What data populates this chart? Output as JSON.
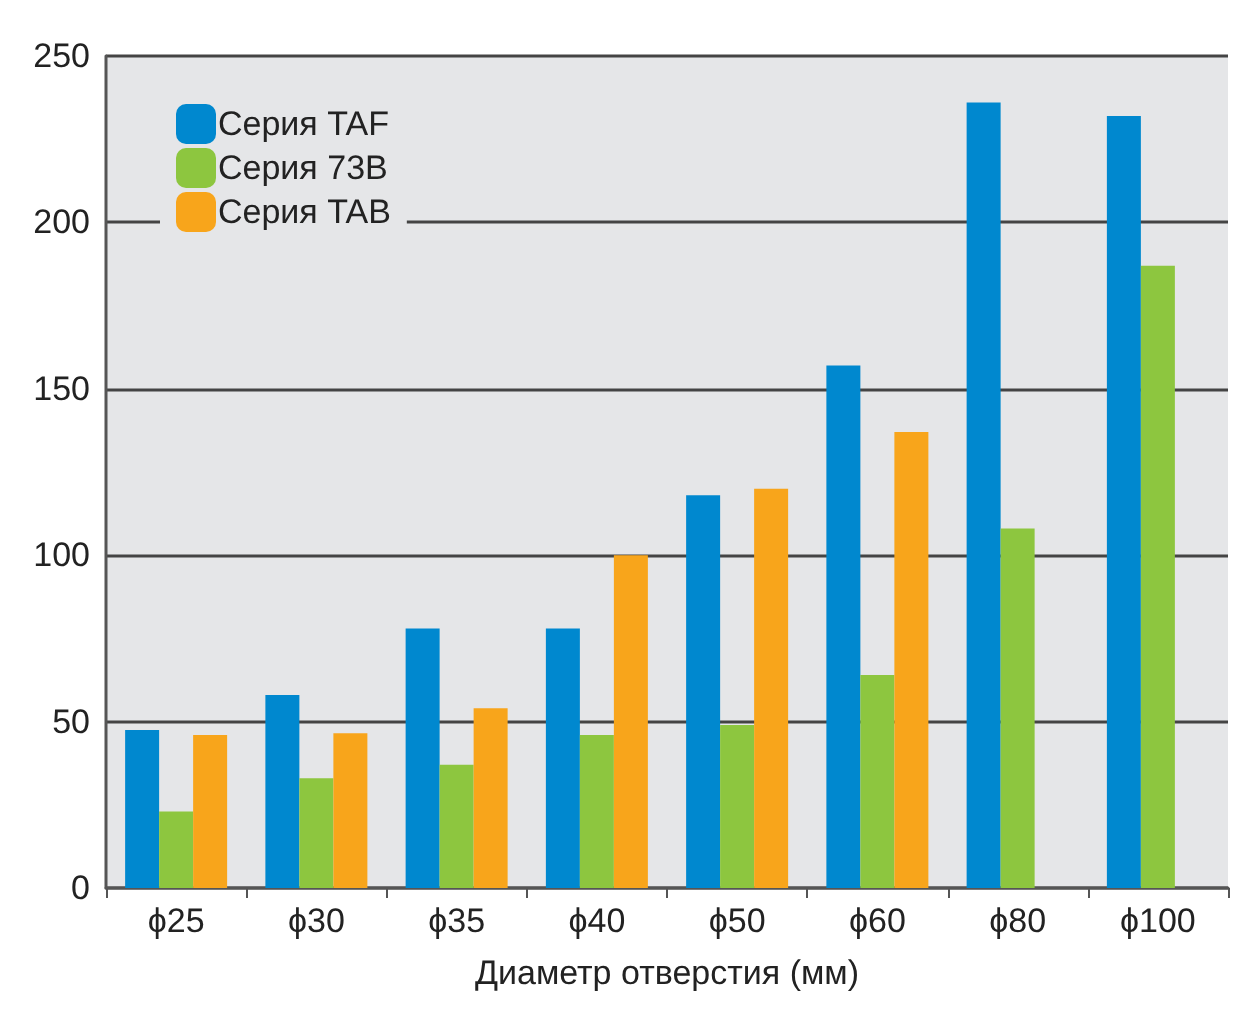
{
  "chart_data": {
    "type": "bar",
    "xlabel": "Диаметр отверстия (мм)",
    "categories": [
      "ϕ25",
      "ϕ30",
      "ϕ35",
      "ϕ40",
      "ϕ50",
      "ϕ60",
      "ϕ80",
      "ϕ100"
    ],
    "series": [
      {
        "name": "Серия TAF",
        "color": "#0088cf",
        "values": [
          47.5,
          58,
          78,
          78,
          118,
          157,
          236,
          232
        ]
      },
      {
        "name": "Серия 73B",
        "color": "#8dc63f",
        "values": [
          23,
          33,
          37,
          46,
          49,
          64,
          108,
          187
        ]
      },
      {
        "name": "Серия TAB",
        "color": "#f8a51b",
        "values": [
          46,
          46.5,
          54,
          100,
          120,
          137,
          null,
          null
        ]
      }
    ],
    "ylim": [
      0,
      250
    ],
    "yticks": [
      0,
      50,
      100,
      150,
      200,
      250
    ],
    "grid": "y",
    "legend": "top left"
  }
}
